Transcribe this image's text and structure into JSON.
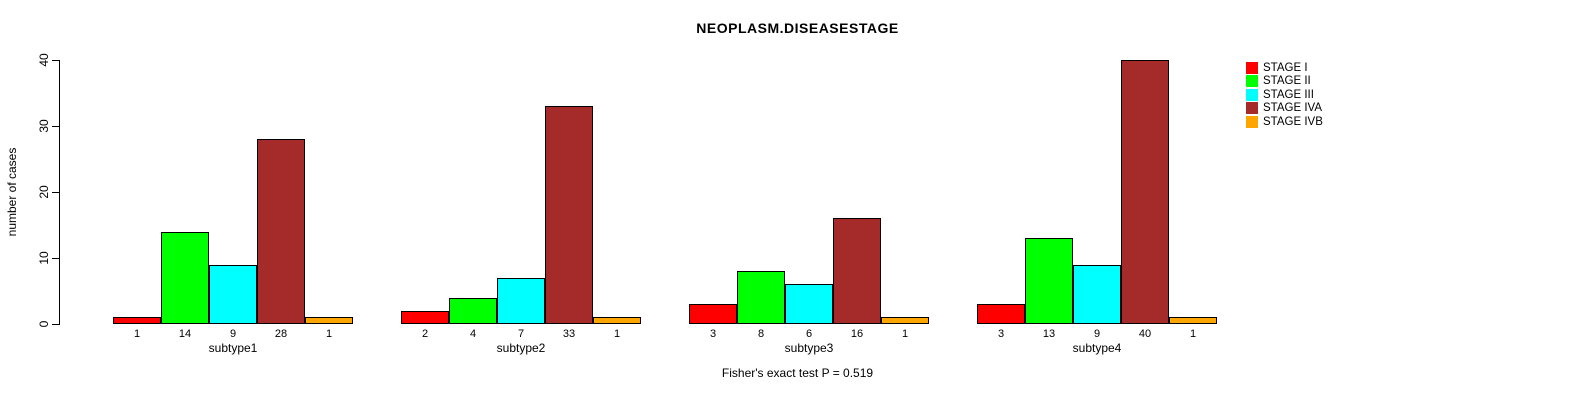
{
  "chart_data": {
    "type": "bar",
    "title": "NEOPLASM.DISEASESTAGE",
    "ylabel": "number of cases",
    "xlabel": "",
    "ylim": [
      0,
      40
    ],
    "yticks": [
      0,
      10,
      20,
      30,
      40
    ],
    "grid": false,
    "legend_position": "right-outside-top",
    "categories": [
      "subtype1",
      "subtype2",
      "subtype3",
      "subtype4"
    ],
    "series": [
      {
        "name": "STAGE I",
        "color": "#ff0000",
        "values": [
          1,
          2,
          3,
          3
        ]
      },
      {
        "name": "STAGE II",
        "color": "#00ff00",
        "values": [
          14,
          4,
          8,
          13
        ]
      },
      {
        "name": "STAGE III",
        "color": "#00ffff",
        "values": [
          9,
          7,
          6,
          9
        ]
      },
      {
        "name": "STAGE IVA",
        "color": "#a52a2a",
        "values": [
          28,
          33,
          16,
          40
        ]
      },
      {
        "name": "STAGE IVB",
        "color": "#ffa500",
        "values": [
          1,
          1,
          1,
          1
        ]
      }
    ],
    "bar_value_labels_shown": true,
    "annotation": "Fisher's exact test P = 0.519"
  },
  "colors": {
    "axis": "#000000",
    "background": "#ffffff",
    "bar_border": "#000000"
  }
}
